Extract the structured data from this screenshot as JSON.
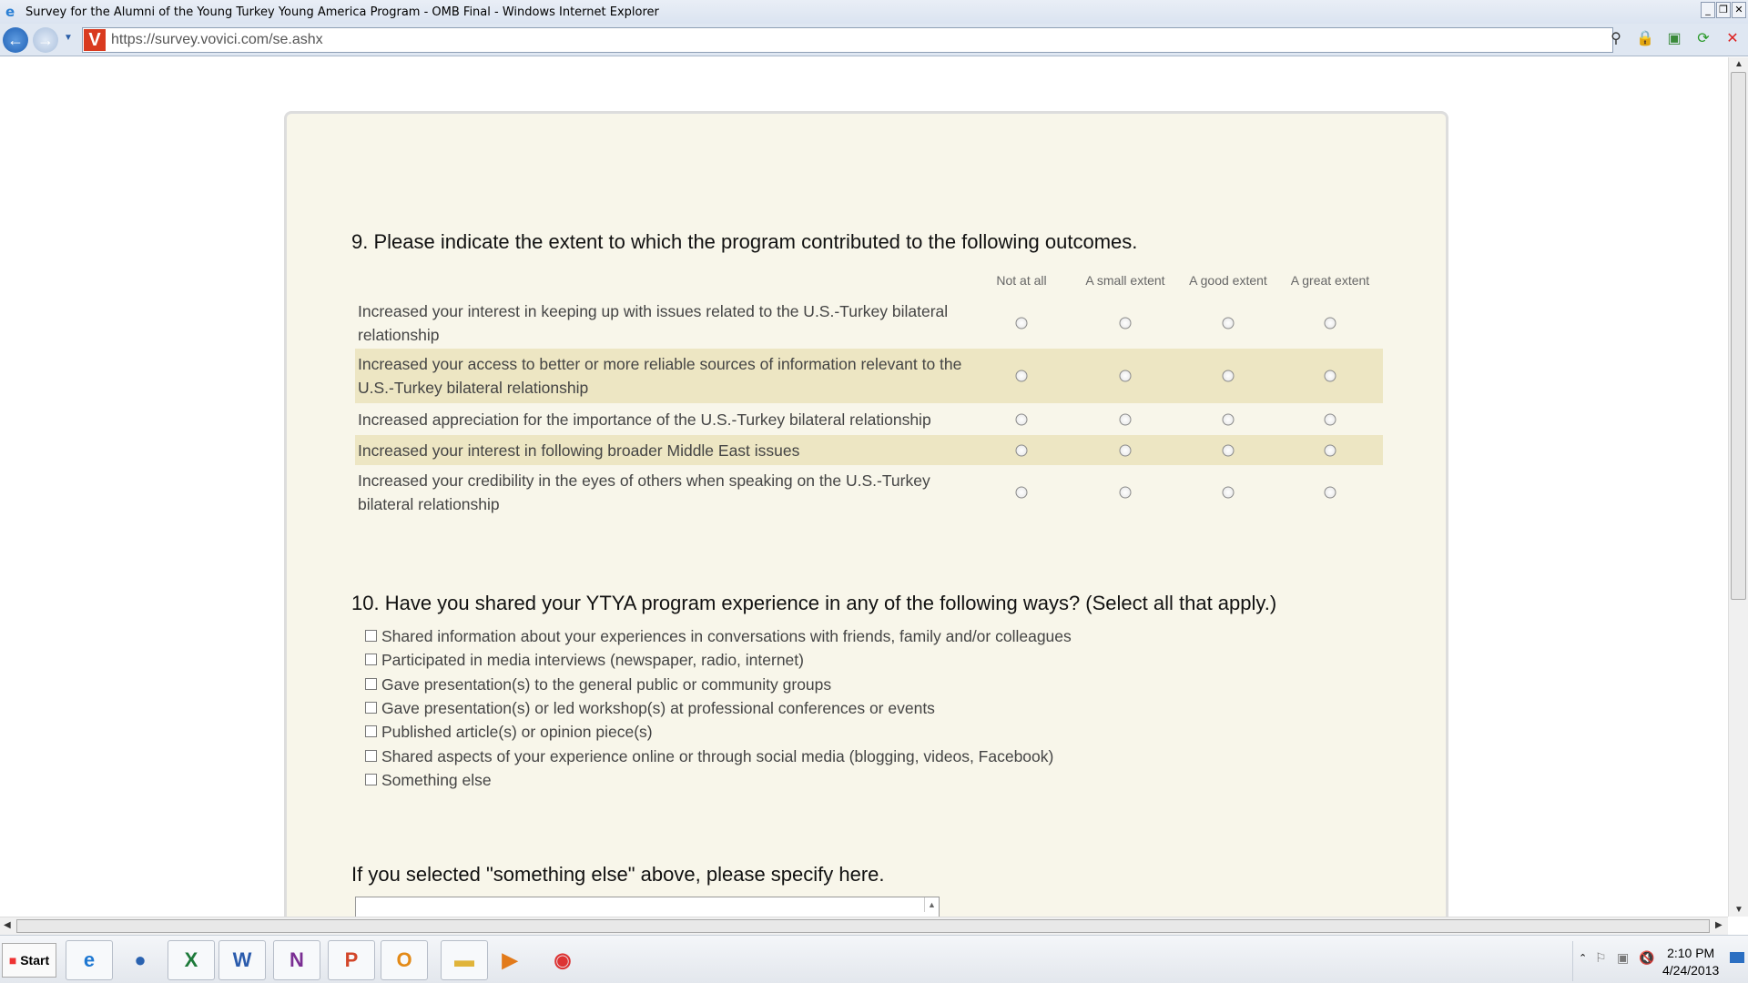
{
  "window": {
    "title": "Survey for the Alumni of the Young Turkey Young America Program - OMB Final - Windows Internet Explorer"
  },
  "browser": {
    "url": "https://survey.vovici.com/se.ashx"
  },
  "q9": {
    "title": "9. Please indicate the extent to which the program contributed to the following outcomes.",
    "columns": [
      "Not at all",
      "A small extent",
      "A good extent",
      "A great extent"
    ],
    "rows": [
      {
        "label": "Increased your interest in keeping up with issues related to the U.S.-Turkey bilateral relationship"
      },
      {
        "label": "Increased your access to better or more reliable sources of information relevant to the U.S.-Turkey bilateral relationship"
      },
      {
        "label": "Increased appreciation for the importance of the U.S.-Turkey bilateral relationship"
      },
      {
        "label": "Increased your interest in following broader Middle East issues"
      },
      {
        "label": "Increased your credibility in the eyes of others when speaking on the U.S.-Turkey bilateral relationship"
      }
    ]
  },
  "q10": {
    "title": "10. Have you shared your YTYA program experience in any of the following ways? (Select all that apply.)",
    "options": [
      "Shared information about your experiences in conversations with friends, family and/or colleagues",
      "Participated in media interviews (newspaper, radio, internet)",
      "Gave presentation(s) to the general public or community groups",
      "Gave presentation(s) or led workshop(s) at professional conferences or events",
      "Published article(s) or opinion piece(s)",
      "Shared aspects of your experience online or through social media (blogging, videos, Facebook)",
      "Something else"
    ]
  },
  "q10b": {
    "title": "If you selected \"something else\" above, please specify here.",
    "value": ""
  },
  "taskbar": {
    "start": "Start",
    "apps": [
      "internet-explorer",
      "globe",
      "excel",
      "word",
      "onenote",
      "powerpoint",
      "outlook",
      "file-explorer",
      "media-player",
      "chrome"
    ]
  },
  "tray": {
    "time": "2:10 PM",
    "date": "4/24/2013"
  },
  "colors": {
    "panel": "#f8f6ea",
    "row_highlight": "#ede6c3"
  }
}
